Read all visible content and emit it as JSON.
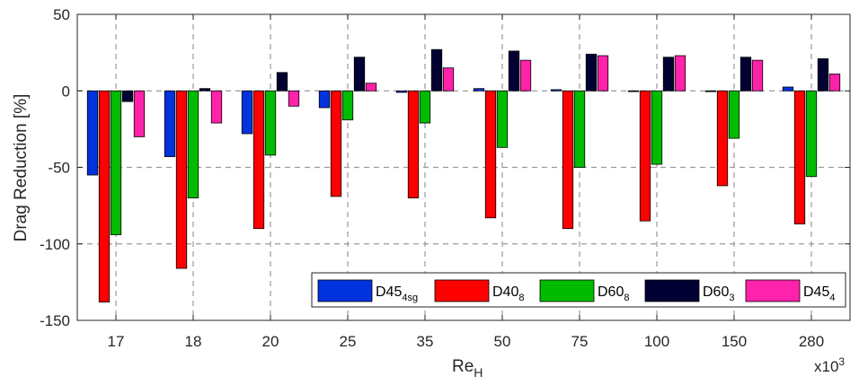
{
  "chart_data": {
    "type": "bar",
    "xlabel": "Re",
    "xlabel_sub": "H",
    "ylabel": "Drag Reduction [%]",
    "x_multiplier": "x10",
    "x_multiplier_exp": "3",
    "ylim": [
      -150,
      50
    ],
    "yticks": [
      "50",
      "0",
      "-50",
      "-100",
      "-150"
    ],
    "ytick_values": [
      50,
      0,
      -50,
      -100,
      -150
    ],
    "grid": "dashed",
    "legend_position": "bottom-right",
    "categories": [
      "17",
      "18",
      "20",
      "25",
      "35",
      "50",
      "75",
      "100",
      "150",
      "280"
    ],
    "series": [
      {
        "name": "D45",
        "sub": "4sg",
        "color": "#0033dd",
        "values": [
          -55,
          -43,
          -28,
          -11,
          -1,
          1.5,
          0.8,
          0,
          -0.5,
          2.5
        ]
      },
      {
        "name": "D40",
        "sub": "8",
        "color": "#ff0000",
        "values": [
          -138,
          -116,
          -90,
          -69,
          -70,
          -83,
          -90,
          -85,
          -62,
          -87
        ]
      },
      {
        "name": "D60",
        "sub": "8",
        "color": "#00bb00",
        "values": [
          -94,
          -70,
          -42,
          -19,
          -21,
          -37,
          -50,
          -48,
          -31,
          -56
        ]
      },
      {
        "name": "D60",
        "sub": "3",
        "color": "#000033",
        "values": [
          -7,
          1.5,
          12,
          22,
          27,
          26,
          24,
          22,
          22,
          21
        ]
      },
      {
        "name": "D45",
        "sub": "4",
        "color": "#ff22aa",
        "values": [
          -30,
          -21,
          -10,
          5,
          15,
          20,
          23,
          23,
          20,
          11
        ]
      }
    ]
  }
}
